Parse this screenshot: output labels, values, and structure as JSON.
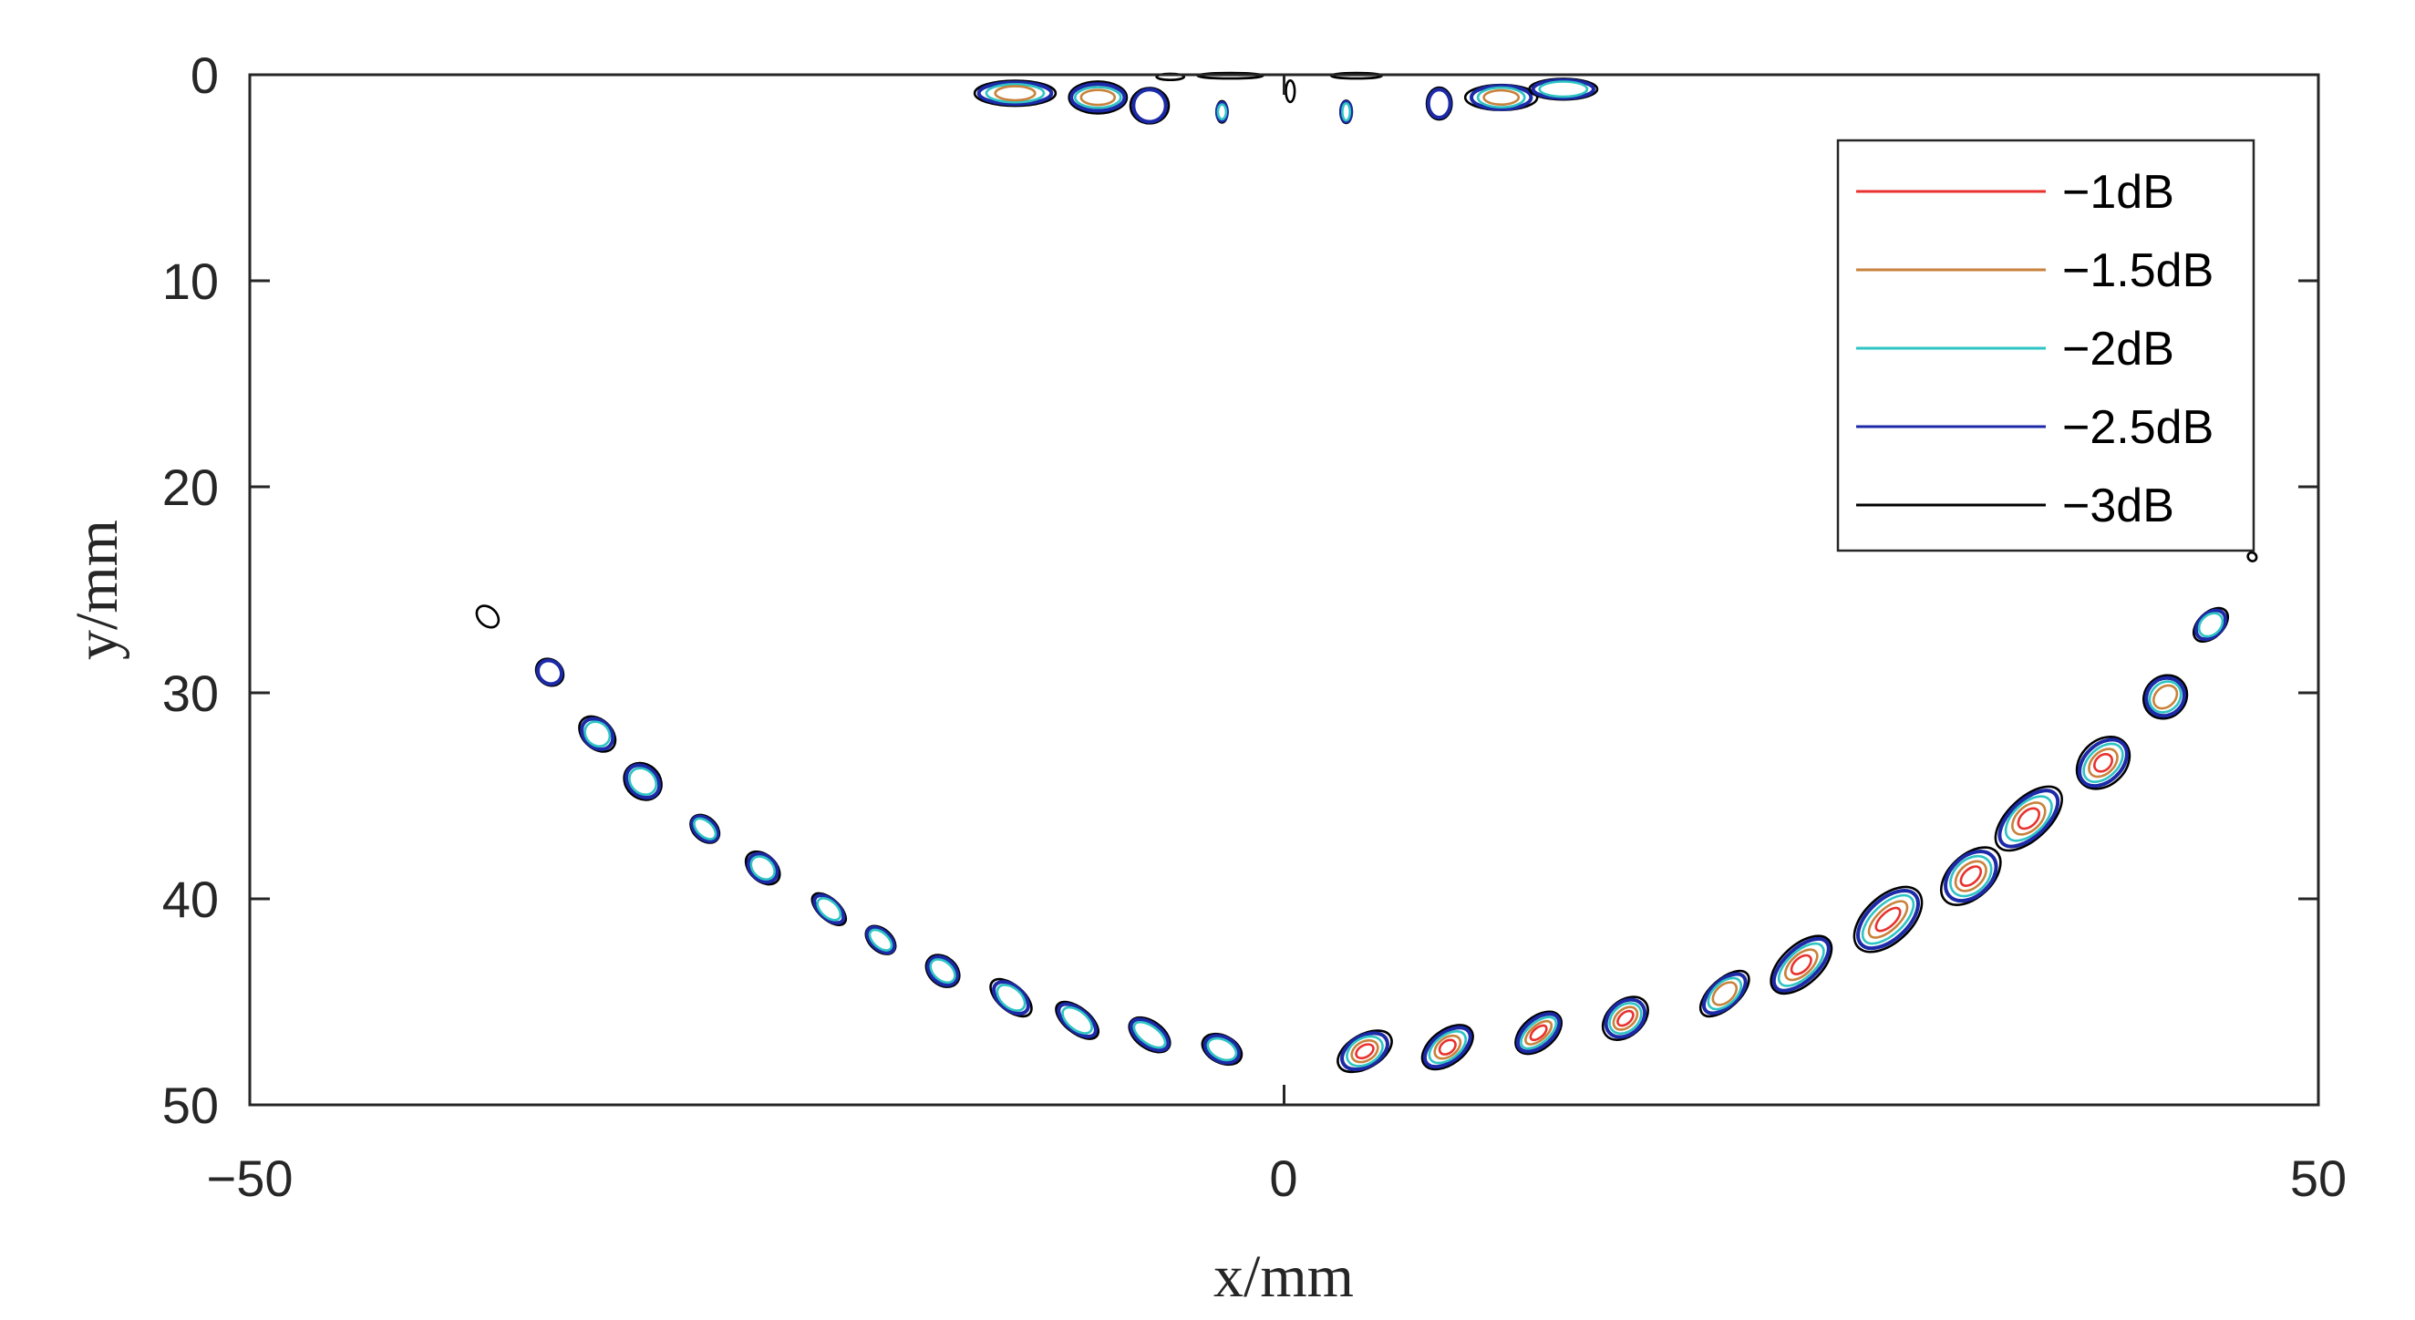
{
  "chart_data": {
    "type": "contour",
    "title": "",
    "xlabel": "x/mm",
    "ylabel": "y/mm",
    "xlim": [
      -50,
      50
    ],
    "ylim": [
      0,
      50
    ],
    "y_reversed": true,
    "x_ticks": [
      "−50",
      "0",
      "50"
    ],
    "y_ticks": [
      "0",
      "10",
      "20",
      "30",
      "40",
      "50"
    ],
    "grid": false,
    "legend": {
      "placement": "top-right"
    },
    "series": [
      {
        "name": "−1dB",
        "color": "#e8322f",
        "scale": 0.35
      },
      {
        "name": "−1.5dB",
        "color": "#c8823c",
        "scale": 0.55
      },
      {
        "name": "−2dB",
        "color": "#2ec4c4",
        "scale": 0.75
      },
      {
        "name": "−2.5dB",
        "color": "#1c2aa8",
        "scale": 0.92
      },
      {
        "name": "−3dB",
        "color": "#000000",
        "scale": 1.05
      }
    ],
    "blobs": [
      {
        "x": -38.5,
        "y": 26.3,
        "rx": 0.6,
        "ry": 0.4,
        "levels": 1
      },
      {
        "x": -35.5,
        "y": 29.0,
        "rx": 0.7,
        "ry": 0.55,
        "levels": 2
      },
      {
        "x": -33.2,
        "y": 32.0,
        "rx": 0.9,
        "ry": 0.7,
        "levels": 3
      },
      {
        "x": -31.0,
        "y": 34.3,
        "rx": 0.9,
        "ry": 0.8,
        "levels": 3
      },
      {
        "x": -28.0,
        "y": 36.6,
        "rx": 0.8,
        "ry": 0.5,
        "levels": 3
      },
      {
        "x": -25.2,
        "y": 38.5,
        "rx": 0.9,
        "ry": 0.6,
        "levels": 3
      },
      {
        "x": -22.0,
        "y": 40.5,
        "rx": 0.9,
        "ry": 0.5,
        "levels": 3
      },
      {
        "x": -19.5,
        "y": 42.0,
        "rx": 0.8,
        "ry": 0.5,
        "levels": 3
      },
      {
        "x": -16.5,
        "y": 43.5,
        "rx": 0.9,
        "ry": 0.6,
        "levels": 3
      },
      {
        "x": -13.2,
        "y": 44.8,
        "rx": 1.1,
        "ry": 0.6,
        "levels": 3
      },
      {
        "x": -10.0,
        "y": 45.9,
        "rx": 1.1,
        "ry": 0.6,
        "levels": 3
      },
      {
        "x": -6.5,
        "y": 46.6,
        "rx": 1.1,
        "ry": 0.6,
        "levels": 3
      },
      {
        "x": -3.0,
        "y": 47.3,
        "rx": 1.0,
        "ry": 0.6,
        "levels": 3
      },
      {
        "x": 3.9,
        "y": 47.4,
        "rx": 1.3,
        "ry": 0.8,
        "levels": 5
      },
      {
        "x": 7.9,
        "y": 47.2,
        "rx": 1.3,
        "ry": 0.8,
        "levels": 5
      },
      {
        "x": 12.3,
        "y": 46.5,
        "rx": 1.3,
        "ry": 0.7,
        "levels": 5
      },
      {
        "x": 16.5,
        "y": 45.8,
        "rx": 1.2,
        "ry": 0.8,
        "levels": 5
      },
      {
        "x": 21.3,
        "y": 44.6,
        "rx": 1.3,
        "ry": 0.7,
        "levels": 4
      },
      {
        "x": 25.0,
        "y": 43.2,
        "rx": 1.7,
        "ry": 0.9,
        "levels": 5
      },
      {
        "x": 29.2,
        "y": 41.0,
        "rx": 2.0,
        "ry": 1.0,
        "levels": 5
      },
      {
        "x": 33.2,
        "y": 38.9,
        "rx": 1.6,
        "ry": 1.0,
        "levels": 5
      },
      {
        "x": 36.0,
        "y": 36.1,
        "rx": 1.8,
        "ry": 1.0,
        "levels": 5
      },
      {
        "x": 39.6,
        "y": 33.4,
        "rx": 1.4,
        "ry": 1.0,
        "levels": 5
      },
      {
        "x": 42.6,
        "y": 30.2,
        "rx": 1.1,
        "ry": 0.9,
        "levels": 4
      },
      {
        "x": 44.8,
        "y": 26.7,
        "rx": 0.9,
        "ry": 0.6,
        "levels": 3
      },
      {
        "x": -13.0,
        "y": 0.9,
        "rx": 1.8,
        "ry": 0.6,
        "levels": 4
      },
      {
        "x": -9.0,
        "y": 1.1,
        "rx": 1.4,
        "ry": 0.7,
        "levels": 4
      },
      {
        "x": -6.5,
        "y": 1.5,
        "rx": 0.9,
        "ry": 0.8,
        "levels": 2
      },
      {
        "x": -5.5,
        "y": 0.1,
        "rx": 0.6,
        "ry": 0.15,
        "levels": 1
      },
      {
        "x": -3.0,
        "y": 1.8,
        "rx": 0.25,
        "ry": 0.5,
        "levels": 3
      },
      {
        "x": -2.6,
        "y": 0.05,
        "rx": 1.6,
        "ry": 0.12,
        "levels": 1
      },
      {
        "x": 0.3,
        "y": 0.8,
        "rx": 0.2,
        "ry": 0.5,
        "levels": 1
      },
      {
        "x": 3.0,
        "y": 1.8,
        "rx": 0.25,
        "ry": 0.55,
        "levels": 3
      },
      {
        "x": 3.5,
        "y": 0.05,
        "rx": 1.2,
        "ry": 0.12,
        "levels": 1
      },
      {
        "x": 7.5,
        "y": 1.4,
        "rx": 0.6,
        "ry": 0.7,
        "levels": 2
      },
      {
        "x": 10.5,
        "y": 1.1,
        "rx": 1.6,
        "ry": 0.6,
        "levels": 4
      },
      {
        "x": 13.5,
        "y": 0.7,
        "rx": 1.5,
        "ry": 0.5,
        "levels": 3
      },
      {
        "x": 46.8,
        "y": 23.4,
        "rx": 0.2,
        "ry": 0.2,
        "levels": 1
      }
    ]
  }
}
